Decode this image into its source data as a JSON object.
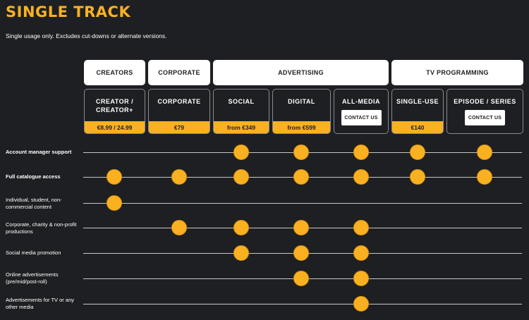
{
  "header": {
    "title": "SINGLE TRACK",
    "subtitle": "Single usage only. Excludes cut-downs or alternate versions."
  },
  "colors": {
    "background": "#1e1f22",
    "accent": "#f9b122",
    "card": "#ffffff"
  },
  "categories": [
    {
      "label": "CREATORS"
    },
    {
      "label": "CORPORATE"
    },
    {
      "label": "ADVERTISING"
    },
    {
      "label": "TV PROGRAMMING"
    }
  ],
  "tiers": [
    {
      "name": "CREATOR /\nCREATOR+",
      "price": "€8.99 / 24.99"
    },
    {
      "name": "CORPORATE",
      "price": "€79"
    },
    {
      "name": "SOCIAL",
      "price": "from €349"
    },
    {
      "name": "DIGITAL",
      "price": "from €599"
    },
    {
      "name": "ALL-MEDIA",
      "cta": "CONTACT US"
    },
    {
      "name": "SINGLE-USE",
      "price": "€140"
    },
    {
      "name": "EPISODE / SERIES",
      "cta": "CONTACT US"
    }
  ],
  "features": [
    {
      "label": "Account manager support",
      "bold": true,
      "included": [
        false,
        false,
        true,
        true,
        true,
        true,
        true
      ]
    },
    {
      "label": "Full catalogue access",
      "bold": true,
      "included": [
        true,
        true,
        true,
        true,
        true,
        true,
        true
      ]
    },
    {
      "label": "Individual, student, non-commercial content",
      "bold": false,
      "included": [
        true,
        false,
        false,
        false,
        false,
        false,
        false
      ]
    },
    {
      "label": "Corporate, charity & non-profit productions",
      "bold": false,
      "included": [
        false,
        true,
        true,
        true,
        true,
        false,
        false
      ]
    },
    {
      "label": "Social media promotion",
      "bold": false,
      "included": [
        false,
        false,
        true,
        true,
        true,
        false,
        false
      ]
    },
    {
      "label": "Online advertisements (pre/mid/post-roll)",
      "bold": false,
      "included": [
        false,
        false,
        false,
        true,
        true,
        false,
        false
      ]
    },
    {
      "label": "Advertisements for TV or any other media",
      "bold": false,
      "included": [
        false,
        false,
        false,
        false,
        true,
        false,
        false
      ]
    }
  ]
}
